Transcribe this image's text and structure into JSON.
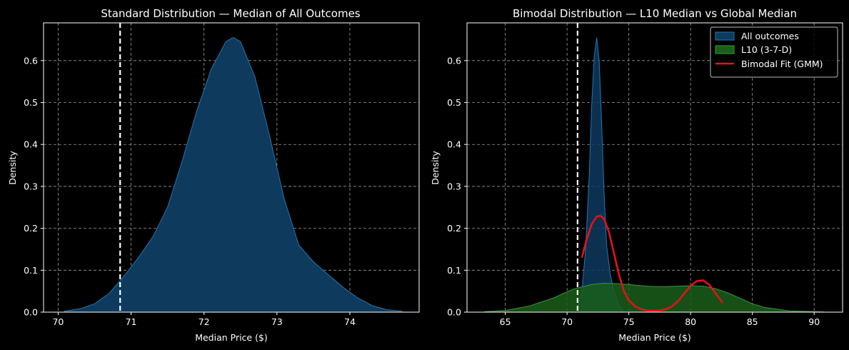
{
  "chart_data": [
    {
      "type": "area",
      "title": "Standard Distribution — Median of All Outcomes",
      "xlabel": "Median Price ($)",
      "ylabel": "Density",
      "xlim": [
        69.8,
        74.95
      ],
      "ylim": [
        0,
        0.69
      ],
      "xticks": [
        70,
        71,
        72,
        73,
        74
      ],
      "yticks": [
        0.0,
        0.1,
        0.2,
        0.3,
        0.4,
        0.5,
        0.6
      ],
      "ytick_labels": [
        "0.0",
        "0.1",
        "0.2",
        "0.3",
        "0.4",
        "0.5",
        "0.6"
      ],
      "grid": true,
      "vline": {
        "x": 70.85,
        "style": "dashed",
        "color": "#ffffff"
      },
      "series": [
        {
          "name": "All outcomes",
          "color": "#1f77b4",
          "fill": "#0e3a5e",
          "x": [
            70.08,
            70.3,
            70.5,
            70.7,
            70.9,
            71.1,
            71.3,
            71.5,
            71.7,
            71.9,
            72.1,
            72.3,
            72.4,
            72.5,
            72.7,
            72.9,
            73.1,
            73.3,
            73.5,
            73.7,
            73.9,
            74.1,
            74.3,
            74.5,
            74.72
          ],
          "y": [
            0.002,
            0.008,
            0.02,
            0.045,
            0.085,
            0.13,
            0.18,
            0.25,
            0.36,
            0.48,
            0.58,
            0.645,
            0.655,
            0.645,
            0.56,
            0.42,
            0.27,
            0.16,
            0.12,
            0.09,
            0.06,
            0.035,
            0.016,
            0.006,
            0.002
          ]
        }
      ]
    },
    {
      "type": "area",
      "title": "Bimodal Distribution — L10 Median vs Global Median",
      "xlabel": "Median Price ($)",
      "ylabel": "Density",
      "xlim": [
        61.9,
        92.3
      ],
      "ylim": [
        0,
        0.69
      ],
      "xticks": [
        65,
        70,
        75,
        80,
        85,
        90
      ],
      "yticks": [
        0.0,
        0.1,
        0.2,
        0.3,
        0.4,
        0.5,
        0.6
      ],
      "ytick_labels": [
        "0.0",
        "0.1",
        "0.2",
        "0.3",
        "0.4",
        "0.5",
        "0.6"
      ],
      "grid": true,
      "vline": {
        "x": 70.85,
        "style": "dashed",
        "color": "#ffffff"
      },
      "legend": {
        "placement": "top-right",
        "entries": [
          "All outcomes",
          "L10 (3-7-D)",
          "Bimodal Fit (GMM)"
        ]
      },
      "series": [
        {
          "name": "All outcomes",
          "kind": "area",
          "color": "#1f77b4",
          "fill": "#0e3a5e",
          "x": [
            70.8,
            71.2,
            71.5,
            71.8,
            72.0,
            72.2,
            72.4,
            72.6,
            72.8,
            73.0,
            73.2,
            73.5,
            73.8,
            74.2,
            74.6
          ],
          "y": [
            0.002,
            0.05,
            0.15,
            0.33,
            0.5,
            0.61,
            0.655,
            0.6,
            0.45,
            0.28,
            0.16,
            0.09,
            0.05,
            0.015,
            0.002
          ]
        },
        {
          "name": "L10 (3-7-D)",
          "kind": "area",
          "color": "#2ca02c",
          "fill": "#1a5e1a",
          "x": [
            63.3,
            65,
            67,
            69,
            70.5,
            72,
            73,
            74,
            75,
            76,
            77,
            78,
            79,
            80,
            81,
            82,
            83,
            84,
            85,
            86,
            88,
            90.8
          ],
          "y": [
            0.001,
            0.004,
            0.015,
            0.035,
            0.055,
            0.066,
            0.069,
            0.068,
            0.066,
            0.063,
            0.061,
            0.061,
            0.062,
            0.063,
            0.062,
            0.056,
            0.046,
            0.033,
            0.02,
            0.011,
            0.003,
            0.0005
          ]
        },
        {
          "name": "Bimodal Fit (GMM)",
          "kind": "line",
          "color": "#e3131b",
          "x": [
            71.2,
            71.6,
            72.0,
            72.4,
            72.7,
            73.0,
            73.4,
            73.8,
            74.2,
            74.6,
            75.0,
            75.5,
            76.0,
            76.5,
            77.0,
            77.5,
            78.0,
            78.5,
            79.0,
            79.5,
            80.0,
            80.5,
            81.0,
            81.5,
            82.0,
            82.6
          ],
          "y": [
            0.13,
            0.175,
            0.21,
            0.228,
            0.23,
            0.222,
            0.19,
            0.14,
            0.09,
            0.05,
            0.028,
            0.014,
            0.007,
            0.004,
            0.003,
            0.004,
            0.007,
            0.014,
            0.027,
            0.045,
            0.063,
            0.074,
            0.076,
            0.066,
            0.046,
            0.022
          ]
        }
      ]
    }
  ]
}
